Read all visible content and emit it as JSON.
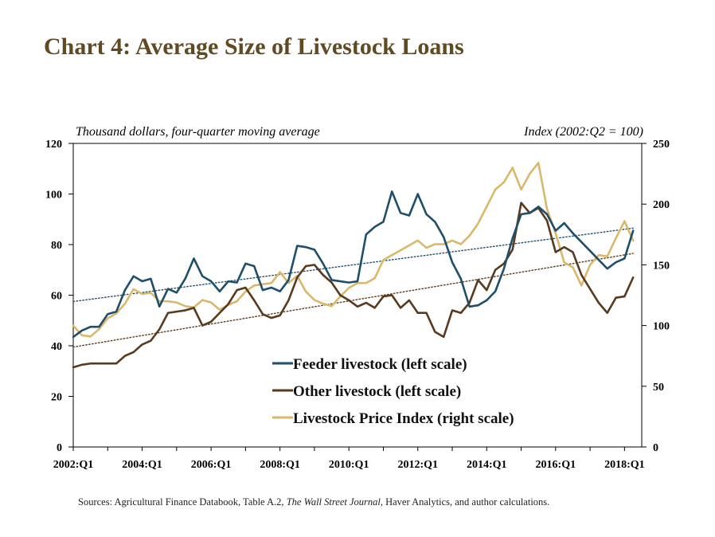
{
  "title": "Chart 4: Average Size of Livestock Loans",
  "left_note": "Thousand dollars, four-quarter moving average",
  "right_note": "Index (2002:Q2 = 100)",
  "source": {
    "prefix": "Sources: Agricultural Finance Databook, Table A.2, ",
    "italic": "The Wall Street Journal",
    "suffix": ", Haver Analytics, and author calculations."
  },
  "colors": {
    "feeder": "#1f4e6b",
    "other": "#5a3a1e",
    "price": "#d9b86c",
    "title": "#5f4a24"
  },
  "chart_data": {
    "type": "line",
    "x_tick_labels": [
      "2002:Q1",
      "2004:Q1",
      "2006:Q1",
      "2008:Q1",
      "2010:Q1",
      "2012:Q1",
      "2014:Q1",
      "2016:Q1",
      "2018:Q1"
    ],
    "x_tick_positions": [
      0,
      8,
      16,
      24,
      32,
      40,
      48,
      56,
      64
    ],
    "x_range": [
      0,
      66
    ],
    "y_left": {
      "ylim": [
        0,
        120
      ],
      "ticks": [
        "0",
        "20",
        "40",
        "60",
        "80",
        "100",
        "120"
      ]
    },
    "y_right": {
      "ylim": [
        0,
        250
      ],
      "ticks": [
        "0",
        "50",
        "100",
        "150",
        "200",
        "250"
      ]
    },
    "legend_position": "center",
    "series": [
      {
        "name": "Feeder livestock (left scale)",
        "axis": "left",
        "color": "#1f4e6b",
        "values": [
          43.5,
          46,
          47.5,
          47.5,
          52.5,
          53.5,
          62,
          67.5,
          65.5,
          66.5,
          55.5,
          62.5,
          61,
          66.5,
          74.5,
          67.5,
          65.5,
          61.5,
          65.5,
          65,
          72.5,
          71.5,
          62,
          63,
          61.5,
          66,
          79.5,
          79,
          78,
          72.5,
          66,
          65.5,
          65,
          65.5,
          84,
          87,
          89,
          101,
          92.5,
          91.5,
          100,
          92,
          89,
          83,
          73,
          66.5,
          55.5,
          56,
          58,
          61.5,
          70.5,
          82.5,
          92,
          92.5,
          95,
          92,
          85.5,
          88.5,
          84.5,
          81,
          77.5,
          74,
          70.5,
          73,
          74.5,
          85.5
        ]
      },
      {
        "name": "Other livestock (left scale)",
        "axis": "left",
        "color": "#5a3a1e",
        "values": [
          31.5,
          32.5,
          33,
          33,
          33,
          33,
          36,
          37.5,
          40.5,
          42,
          46.5,
          53,
          53.5,
          54,
          55,
          48,
          49.5,
          53,
          56.5,
          62,
          63,
          58,
          52.5,
          51,
          52,
          58,
          67,
          71.5,
          72,
          68,
          65,
          60,
          58,
          55.5,
          57,
          55,
          59.5,
          60,
          55,
          58,
          53,
          53,
          45.5,
          43.5,
          54,
          53,
          57,
          66,
          62,
          70,
          72.5,
          78,
          96.5,
          92.5,
          94.5,
          89.5,
          77,
          79,
          77,
          68,
          62.5,
          57,
          53,
          59,
          59.5,
          67
        ]
      },
      {
        "name": "Livestock Price Index (right scale)",
        "axis": "right",
        "color": "#d9b86c",
        "values": [
          100,
          92,
          91,
          97,
          106,
          110,
          118,
          130,
          126,
          127,
          120,
          120,
          119,
          116,
          115,
          121,
          119,
          113,
          117,
          120,
          128,
          133,
          134,
          135,
          144,
          135,
          141,
          128,
          121,
          118,
          116,
          124,
          131,
          135,
          135,
          139,
          154,
          158,
          162,
          166,
          170,
          164,
          167,
          167,
          170,
          167,
          174,
          184,
          198,
          212,
          218,
          230,
          212,
          225,
          234,
          196,
          176,
          152,
          148,
          133,
          150,
          158,
          157,
          172,
          186,
          170
        ]
      }
    ],
    "trendlines": [
      {
        "of": "Feeder livestock (left scale)",
        "axis": "left",
        "color": "#1f4e6b",
        "start": 57.5,
        "end": 86.5
      },
      {
        "of": "Other livestock (left scale)",
        "axis": "left",
        "color": "#5a3a1e",
        "start": 39.5,
        "end": 76.5
      }
    ]
  }
}
